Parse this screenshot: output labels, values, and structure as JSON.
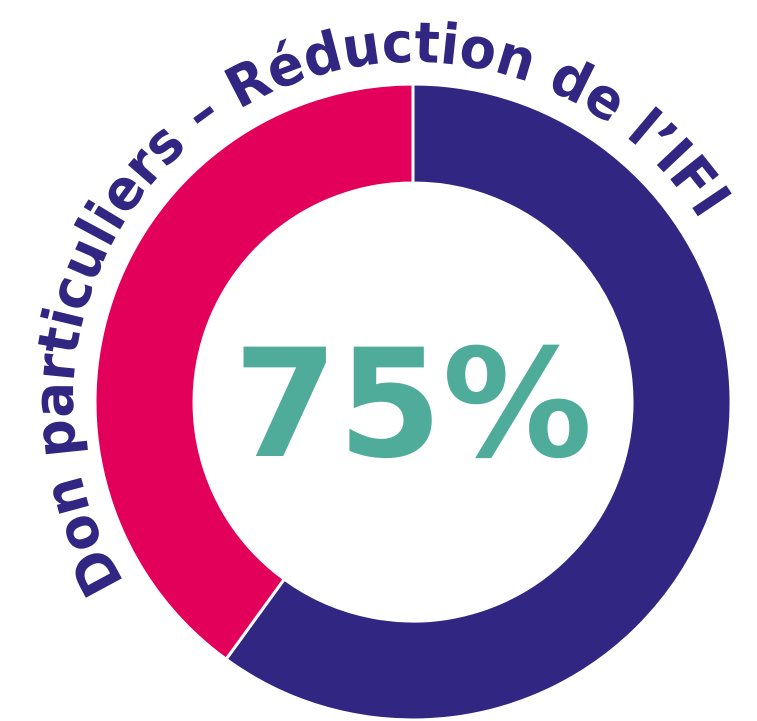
{
  "chart_data": {
    "type": "donut",
    "title": "Don particuliers – Réduction de l’IFI",
    "center_label": "75%",
    "categories": [
      null,
      null
    ],
    "values": [
      60,
      40
    ],
    "colors": [
      "#312783",
      "#e2005a"
    ]
  }
}
